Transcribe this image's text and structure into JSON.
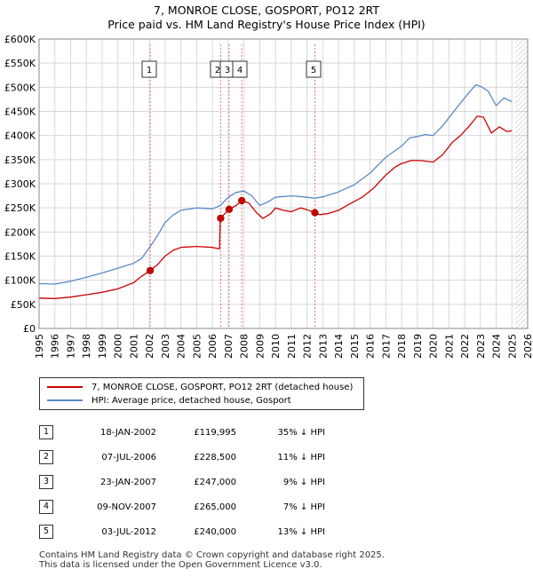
{
  "header": {
    "title": "7, MONROE CLOSE, GOSPORT, PO12 2RT",
    "subtitle": "Price paid vs. HM Land Registry's House Price Index (HPI)"
  },
  "legend": {
    "property_label": "7, MONROE CLOSE, GOSPORT, PO12 2RT (detached house)",
    "hpi_label": "HPI: Average price, detached house, Gosport"
  },
  "colors": {
    "property": "#cc0000",
    "hpi": "#5b8ac7",
    "grid": "#d8d8d8",
    "future_hatch": "#999999",
    "sale_marker_line": "#d84040"
  },
  "sales": [
    {
      "num": "1",
      "date": "18-JAN-2002",
      "price": "£119,995",
      "hpi": "35% ↓ HPI"
    },
    {
      "num": "2",
      "date": "07-JUL-2006",
      "price": "£228,500",
      "hpi": "11% ↓ HPI"
    },
    {
      "num": "3",
      "date": "23-JAN-2007",
      "price": "£247,000",
      "hpi": "9% ↓ HPI"
    },
    {
      "num": "4",
      "date": "09-NOV-2007",
      "price": "£265,000",
      "hpi": "7% ↓ HPI"
    },
    {
      "num": "5",
      "date": "03-JUL-2012",
      "price": "£240,000",
      "hpi": "13% ↓ HPI"
    }
  ],
  "footer": {
    "line1": "Contains HM Land Registry data © Crown copyright and database right 2025.",
    "line2": "This data is licensed under the Open Government Licence v3.0."
  },
  "chart_data": {
    "type": "line",
    "title": "7, MONROE CLOSE, GOSPORT, PO12 2RT",
    "subtitle": "Price paid vs. HM Land Registry's House Price Index (HPI)",
    "xlabel": "",
    "ylabel": "",
    "xlim": [
      1995,
      2026
    ],
    "ylim": [
      0,
      600000
    ],
    "grid": true,
    "legend_position": "below",
    "forecast_from": 2025.2,
    "x_ticks": [
      "1995",
      "1996",
      "1997",
      "1998",
      "1999",
      "2000",
      "2001",
      "2002",
      "2003",
      "2004",
      "2005",
      "2006",
      "2007",
      "2008",
      "2009",
      "2010",
      "2011",
      "2012",
      "2013",
      "2014",
      "2015",
      "2016",
      "2017",
      "2018",
      "2019",
      "2020",
      "2021",
      "2022",
      "2023",
      "2024",
      "2025",
      "2026"
    ],
    "y_ticks": [
      {
        "value": 0,
        "label": "£0"
      },
      {
        "value": 50000,
        "label": "£50K"
      },
      {
        "value": 100000,
        "label": "£100K"
      },
      {
        "value": 150000,
        "label": "£150K"
      },
      {
        "value": 200000,
        "label": "£200K"
      },
      {
        "value": 250000,
        "label": "£250K"
      },
      {
        "value": 300000,
        "label": "£300K"
      },
      {
        "value": 350000,
        "label": "£350K"
      },
      {
        "value": 400000,
        "label": "£400K"
      },
      {
        "value": 450000,
        "label": "£450K"
      },
      {
        "value": 500000,
        "label": "£500K"
      },
      {
        "value": 550000,
        "label": "£550K"
      },
      {
        "value": 600000,
        "label": "£600K"
      }
    ],
    "series": [
      {
        "name": "7, MONROE CLOSE, GOSPORT, PO12 2RT (detached house)",
        "color": "#cc0000",
        "points": [
          [
            1995,
            63000
          ],
          [
            1996,
            62000
          ],
          [
            1997,
            65000
          ],
          [
            1998,
            70000
          ],
          [
            1999,
            75000
          ],
          [
            2000,
            82000
          ],
          [
            2001,
            95000
          ],
          [
            2001.5,
            108000
          ],
          [
            2002.05,
            119995
          ],
          [
            2002.5,
            132000
          ],
          [
            2003,
            150000
          ],
          [
            2003.5,
            162000
          ],
          [
            2004,
            168000
          ],
          [
            2005,
            170000
          ],
          [
            2006,
            168000
          ],
          [
            2006.45,
            165000
          ],
          [
            2006.5,
            228500
          ],
          [
            2007.06,
            247000
          ],
          [
            2007.5,
            255000
          ],
          [
            2007.86,
            265000
          ],
          [
            2008.3,
            260000
          ],
          [
            2008.8,
            240000
          ],
          [
            2009.2,
            228000
          ],
          [
            2009.7,
            238000
          ],
          [
            2010,
            250000
          ],
          [
            2010.5,
            245000
          ],
          [
            2011,
            242000
          ],
          [
            2011.6,
            250000
          ],
          [
            2012,
            246000
          ],
          [
            2012.5,
            240000
          ],
          [
            2012.8,
            236000
          ],
          [
            2013.3,
            238000
          ],
          [
            2014,
            245000
          ],
          [
            2014.7,
            258000
          ],
          [
            2015.5,
            272000
          ],
          [
            2016.2,
            290000
          ],
          [
            2017,
            318000
          ],
          [
            2017.6,
            335000
          ],
          [
            2018,
            342000
          ],
          [
            2018.6,
            348000
          ],
          [
            2019.2,
            348000
          ],
          [
            2020,
            345000
          ],
          [
            2020.6,
            360000
          ],
          [
            2021.2,
            385000
          ],
          [
            2021.8,
            402000
          ],
          [
            2022.3,
            420000
          ],
          [
            2022.8,
            440000
          ],
          [
            2023.2,
            438000
          ],
          [
            2023.7,
            405000
          ],
          [
            2024.2,
            418000
          ],
          [
            2024.7,
            408000
          ],
          [
            2025.0,
            410000
          ]
        ]
      },
      {
        "name": "HPI: Average price, detached house, Gosport",
        "color": "#5b8ac7",
        "points": [
          [
            1995,
            93000
          ],
          [
            1996,
            92000
          ],
          [
            1997,
            98000
          ],
          [
            1998,
            106000
          ],
          [
            1999,
            115000
          ],
          [
            2000,
            125000
          ],
          [
            2001,
            135000
          ],
          [
            2001.5,
            145000
          ],
          [
            2002.05,
            170000
          ],
          [
            2002.5,
            192000
          ],
          [
            2003,
            220000
          ],
          [
            2003.5,
            235000
          ],
          [
            2004,
            245000
          ],
          [
            2005,
            250000
          ],
          [
            2006,
            248000
          ],
          [
            2006.5,
            255000
          ],
          [
            2007,
            272000
          ],
          [
            2007.5,
            282000
          ],
          [
            2008,
            285000
          ],
          [
            2008.5,
            275000
          ],
          [
            2009,
            255000
          ],
          [
            2009.5,
            262000
          ],
          [
            2010,
            272000
          ],
          [
            2011,
            275000
          ],
          [
            2012,
            272000
          ],
          [
            2012.5,
            270000
          ],
          [
            2013,
            273000
          ],
          [
            2014,
            283000
          ],
          [
            2015,
            298000
          ],
          [
            2016,
            322000
          ],
          [
            2017,
            355000
          ],
          [
            2018,
            378000
          ],
          [
            2018.5,
            395000
          ],
          [
            2019,
            398000
          ],
          [
            2019.5,
            402000
          ],
          [
            2020,
            400000
          ],
          [
            2020.6,
            420000
          ],
          [
            2021.2,
            445000
          ],
          [
            2021.8,
            470000
          ],
          [
            2022.3,
            490000
          ],
          [
            2022.7,
            505000
          ],
          [
            2023.0,
            502000
          ],
          [
            2023.5,
            492000
          ],
          [
            2024.0,
            462000
          ],
          [
            2024.5,
            478000
          ],
          [
            2025.0,
            470000
          ]
        ]
      }
    ],
    "sales": [
      {
        "num": "1",
        "x": 2002.05,
        "price": 119995
      },
      {
        "num": "2",
        "x": 2006.52,
        "price": 228500
      },
      {
        "num": "3",
        "x": 2007.06,
        "price": 247000
      },
      {
        "num": "4",
        "x": 2007.86,
        "price": 265000
      },
      {
        "num": "5",
        "x": 2012.5,
        "price": 240000
      }
    ]
  }
}
